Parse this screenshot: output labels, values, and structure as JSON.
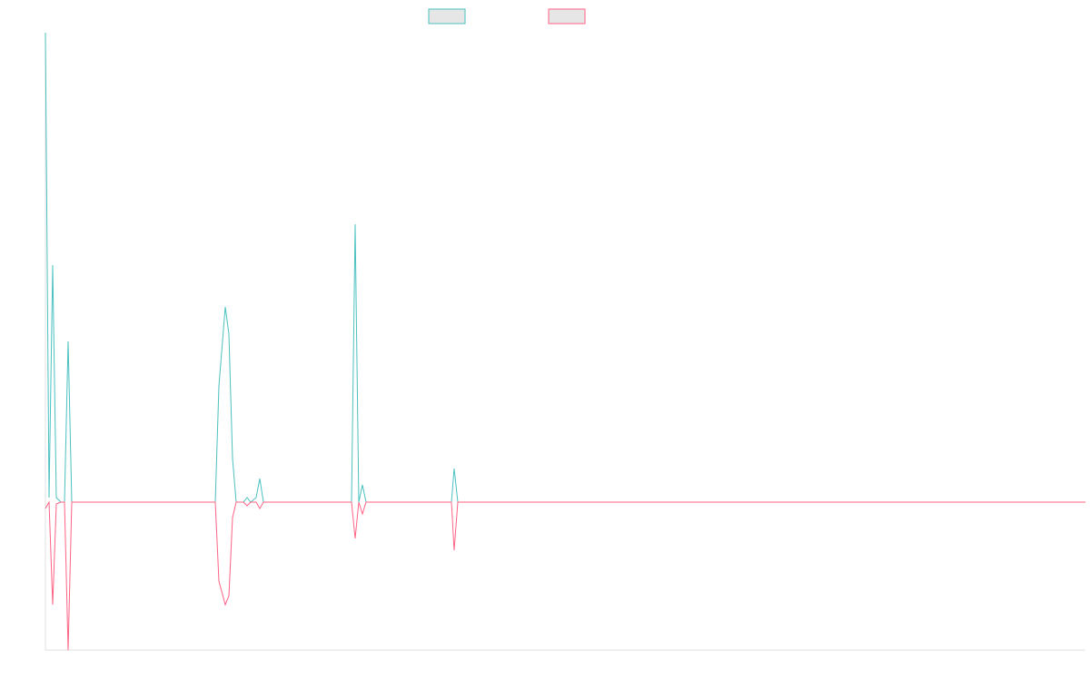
{
  "chart_data": {
    "type": "line",
    "x": [
      0,
      4,
      8,
      12,
      17,
      21,
      25,
      29,
      187,
      191,
      198,
      202,
      206,
      210,
      218,
      222,
      226,
      232,
      236,
      240,
      337,
      341,
      345,
      349,
      353,
      447,
      450,
      454,
      1145
    ],
    "series": [
      {
        "color": "#4bc0c0",
        "values": [
          5.17,
          0.05,
          2.61,
          0.05,
          0,
          0,
          1.77,
          0,
          0,
          1.28,
          2.15,
          1.85,
          0.48,
          0,
          0,
          0.05,
          0,
          0.05,
          0.26,
          0,
          0,
          3.06,
          0,
          0.19,
          0,
          0,
          0.37,
          0,
          0
        ]
      },
      {
        "color": "#ff6384",
        "values": [
          -0.07,
          0,
          -1.13,
          -0.02,
          0,
          0,
          -1.63,
          0,
          0,
          -0.87,
          -1.13,
          -1.03,
          -0.17,
          0,
          0,
          -0.04,
          0,
          0,
          -0.07,
          0,
          0,
          -0.4,
          0,
          -0.13,
          0,
          0,
          -0.53,
          0,
          0
        ]
      }
    ],
    "xlim": [
      0,
      1145
    ],
    "ylim": [
      -1.63,
      5.17
    ]
  }
}
